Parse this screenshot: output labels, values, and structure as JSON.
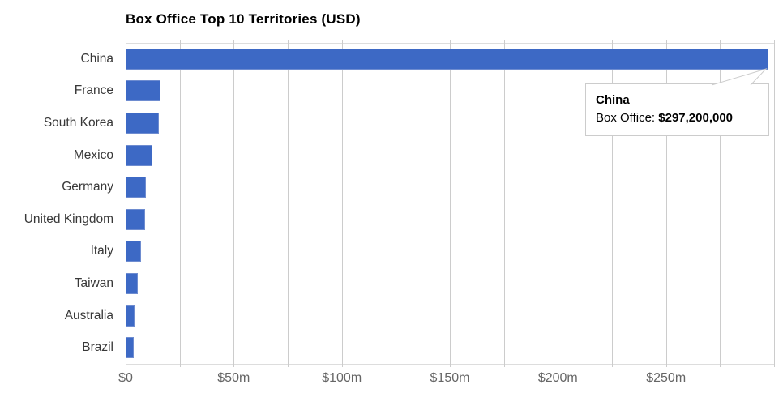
{
  "chart": {
    "title": "Box Office Top 10 Territories (USD)",
    "bar_color": "#3d69c5",
    "bar_border_color": "#6e8cd0",
    "grid_color": "#cccccc",
    "axis_color": "#333333",
    "category_label_color": "#383838",
    "tick_label_color": "#666666"
  },
  "tooltip": {
    "title": "China",
    "label": "Box Office: ",
    "value": "$297,200,000"
  },
  "chart_data": {
    "type": "bar",
    "orientation": "horizontal",
    "title": "Box Office Top 10 Territories (USD)",
    "categories": [
      "China",
      "France",
      "South Korea",
      "Mexico",
      "Germany",
      "United Kingdom",
      "Italy",
      "Taiwan",
      "Australia",
      "Brazil"
    ],
    "values": [
      297200000,
      16000000,
      15300000,
      12400000,
      9300000,
      8900000,
      7200000,
      5600000,
      4000000,
      3700000
    ],
    "series_name": "Box Office",
    "xlabel": "",
    "ylabel": "",
    "xlim": [
      0,
      300000000
    ],
    "x_ticks": [
      {
        "value": 0,
        "label": "$0"
      },
      {
        "value": 50000000,
        "label": "$50m"
      },
      {
        "value": 100000000,
        "label": "$100m"
      },
      {
        "value": 150000000,
        "label": "$150m"
      },
      {
        "value": 200000000,
        "label": "$200m"
      },
      {
        "value": 250000000,
        "label": "$250m"
      }
    ],
    "minor_gridline_step": 25000000,
    "grid": true,
    "legend": "none",
    "highlighted_category": "China",
    "highlighted_value_label": "$297,200,000"
  }
}
